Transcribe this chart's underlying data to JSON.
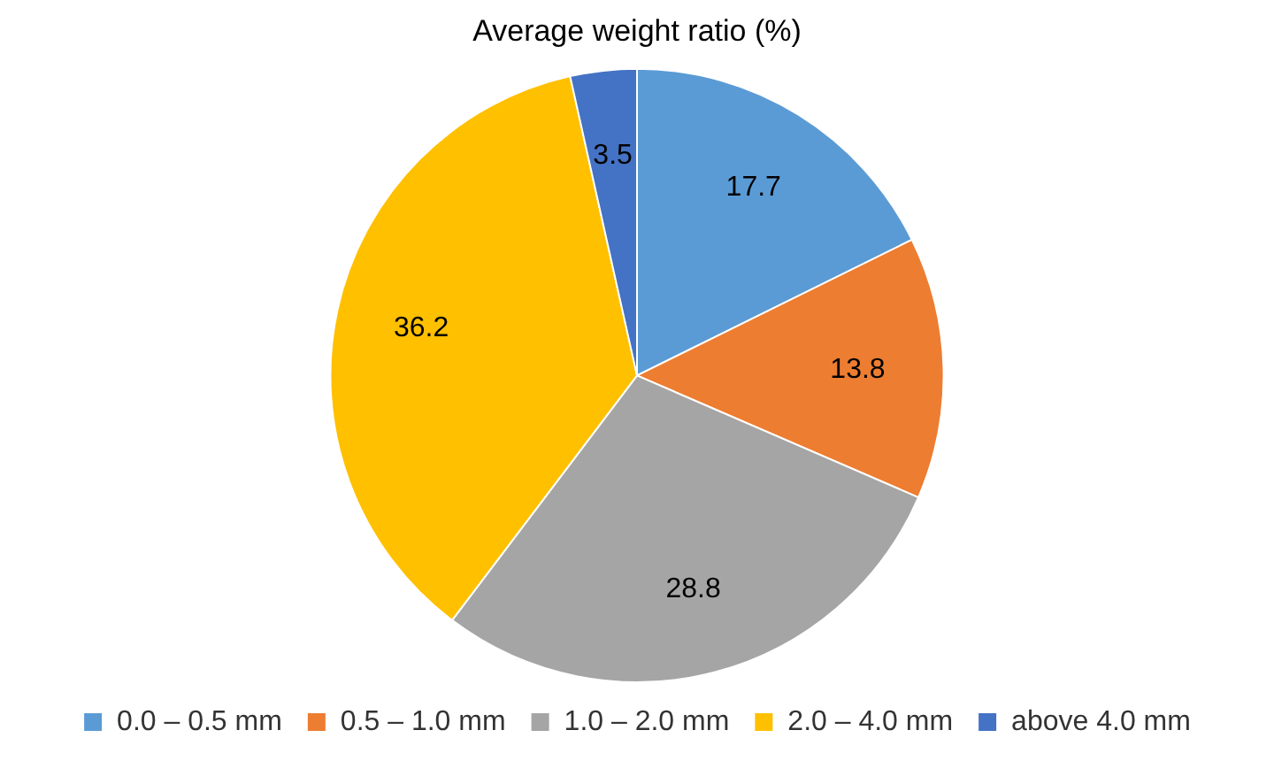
{
  "chart_data": {
    "type": "pie",
    "title": "Average weight ratio (%)",
    "categories": [
      "0.0 – 0.5 mm",
      "0.5 – 1.0 mm",
      "1.0 – 2.0 mm",
      "2.0 – 4.0 mm",
      "above 4.0 mm"
    ],
    "values": [
      17.7,
      13.8,
      28.8,
      36.2,
      3.5
    ],
    "colors": [
      "#5b9bd5",
      "#ed7d31",
      "#a5a5a5",
      "#ffc000",
      "#4472c4"
    ],
    "data_labels": true,
    "legend": "bottom"
  }
}
